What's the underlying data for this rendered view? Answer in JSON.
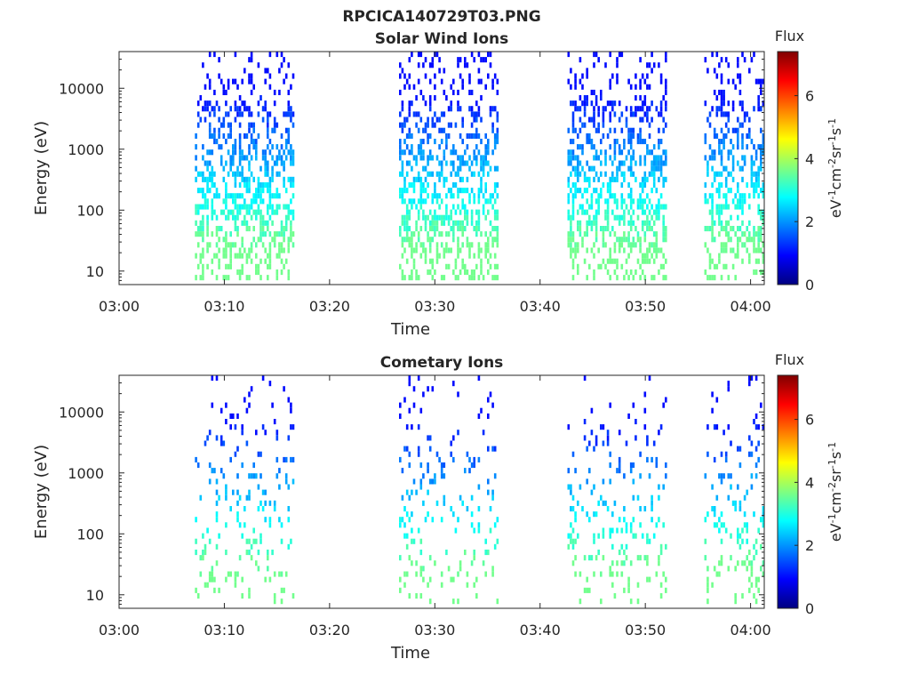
{
  "figure": {
    "title": "RPCICA140729T03.PNG"
  },
  "colormap": "jet",
  "chart_data": [
    {
      "type": "heatmap",
      "title": "Solar Wind Ions",
      "xlabel": "Time",
      "ylabel": "Energy (eV)",
      "x_tick_labels": [
        "03:00",
        "03:10",
        "03:20",
        "03:30",
        "03:40",
        "03:50",
        "04:00"
      ],
      "x_tick_minutes": [
        0,
        10,
        20,
        30,
        40,
        50,
        60
      ],
      "xlim_minutes": [
        0,
        61.3
      ],
      "y_scale": "log",
      "y_tick_labels": [
        "10",
        "100",
        "1000",
        "10000"
      ],
      "y_tick_values": [
        10,
        100,
        1000,
        10000
      ],
      "ylim": [
        6,
        40000
      ],
      "colorbar": {
        "title": "Flux",
        "label": "eV-1cm-2sr-1s-1",
        "ticks": [
          0,
          2,
          4,
          6
        ],
        "range": [
          0,
          7.4
        ]
      },
      "data_bursts_minutes": [
        [
          7.2,
          16.6
        ],
        [
          26.6,
          36.0
        ],
        [
          42.6,
          52.0
        ],
        [
          55.6,
          61.3
        ]
      ],
      "grid": false
    },
    {
      "type": "heatmap",
      "title": "Cometary Ions",
      "xlabel": "Time",
      "ylabel": "Energy (eV)",
      "x_tick_labels": [
        "03:00",
        "03:10",
        "03:20",
        "03:30",
        "03:40",
        "03:50",
        "04:00"
      ],
      "x_tick_minutes": [
        0,
        10,
        20,
        30,
        40,
        50,
        60
      ],
      "xlim_minutes": [
        0,
        61.3
      ],
      "y_scale": "log",
      "y_tick_labels": [
        "10",
        "100",
        "1000",
        "10000"
      ],
      "y_tick_values": [
        10,
        100,
        1000,
        10000
      ],
      "ylim": [
        6,
        40000
      ],
      "colorbar": {
        "title": "Flux",
        "label": "eV-1cm-2sr-1s-1",
        "ticks": [
          0,
          2,
          4,
          6
        ],
        "range": [
          0,
          7.4
        ]
      },
      "data_bursts_minutes": [
        [
          7.2,
          16.6
        ],
        [
          26.6,
          36.0
        ],
        [
          42.6,
          52.0
        ],
        [
          55.6,
          61.3
        ]
      ],
      "grid": false
    }
  ]
}
